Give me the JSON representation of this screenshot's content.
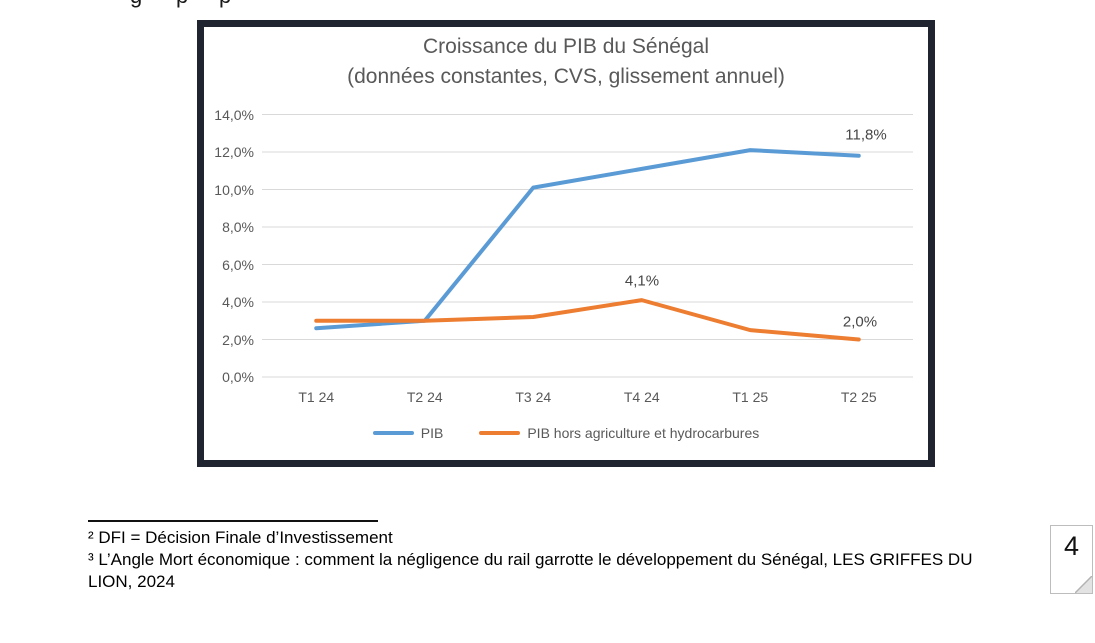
{
  "page": {
    "top_fragments": [
      "g",
      "p",
      "p"
    ],
    "page_number": "4"
  },
  "footnotes": {
    "note2": "² DFI = Décision Finale d’Investissement",
    "note3": "³ L’Angle Mort économique : comment la négligence du rail garrotte le développement du Sénégal, LES GRIFFES DU LION, 2024"
  },
  "chart_data": {
    "type": "line",
    "title": "Croissance du PIB du Sénégal",
    "subtitle": "(données constantes, CVS, glissement annuel)",
    "categories": [
      "T1 24",
      "T2 24",
      "T3 24",
      "T4 24",
      "T1 25",
      "T2 25"
    ],
    "series": [
      {
        "name": "PIB",
        "color": "#5B9BD5",
        "values": [
          2.6,
          3.0,
          10.1,
          11.1,
          12.1,
          11.8
        ]
      },
      {
        "name": "PIB hors agriculture et hydrocarbures",
        "color": "#ED7D31",
        "values": [
          3.0,
          3.0,
          3.2,
          4.1,
          2.5,
          2.0
        ]
      }
    ],
    "y_ticks": [
      "0,0%",
      "2,0%",
      "4,0%",
      "6,0%",
      "8,0%",
      "10,0%",
      "12,0%",
      "14,0%"
    ],
    "ylim": [
      0,
      14
    ],
    "xlabel": "",
    "ylabel": "",
    "grid": "horizontal",
    "legend_position": "bottom",
    "data_labels": [
      {
        "series": "PIB",
        "category": "T2 25",
        "text": "11,8%"
      },
      {
        "series": "PIB hors agriculture et hydrocarbures",
        "category": "T4 24",
        "text": "4,1%"
      },
      {
        "series": "PIB hors agriculture et hydrocarbures",
        "category": "T2 25",
        "text": "2,0%"
      }
    ],
    "colors": {
      "grid": "#D9D9D9",
      "axis_text": "#595959",
      "frame": "#1F2430"
    }
  }
}
